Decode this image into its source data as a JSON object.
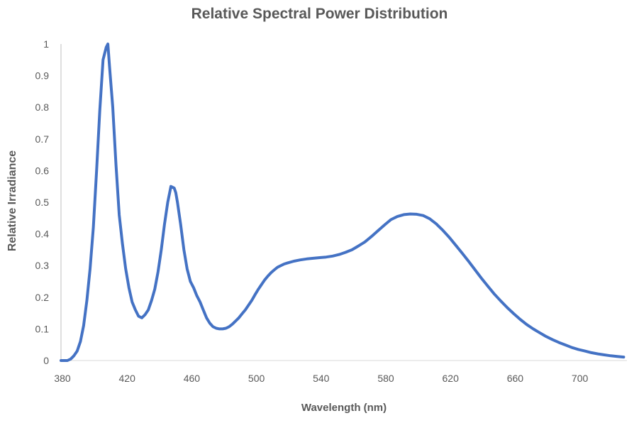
{
  "chart_data": {
    "type": "line",
    "title": "Relative Spectral Power Distribution",
    "xlabel": "Wavelength (nm)",
    "ylabel": "Relative Irradiance",
    "xlim": [
      380,
      730
    ],
    "ylim": [
      0,
      1
    ],
    "xticks": [
      380,
      420,
      460,
      500,
      540,
      580,
      620,
      660,
      700
    ],
    "yticks": [
      0,
      0.1,
      0.2,
      0.3,
      0.4,
      0.5,
      0.6,
      0.7,
      0.8,
      0.9,
      1
    ],
    "ytick_labels": [
      "0",
      "0.1",
      "0.2",
      "0.3",
      "0.4",
      "0.5",
      "0.6",
      "0.7",
      "0.8",
      "0.9",
      "1"
    ],
    "grid": false,
    "color": "#4472C4",
    "series": [
      {
        "name": "Relative Irradiance",
        "x": [
          380,
          384,
          386,
          388,
          390,
          392,
          394,
          396,
          398,
          400,
          402,
          404,
          406,
          408,
          409,
          410,
          412,
          414,
          416,
          418,
          420,
          422,
          424,
          426,
          428,
          430,
          432,
          434,
          436,
          438,
          440,
          442,
          444,
          446,
          448,
          450,
          451,
          452,
          454,
          456,
          458,
          460,
          462,
          464,
          466,
          468,
          470,
          472,
          474,
          476,
          478,
          480,
          482,
          484,
          486,
          488,
          490,
          492,
          494,
          496,
          498,
          500,
          502,
          504,
          506,
          508,
          510,
          512,
          514,
          516,
          518,
          520,
          524,
          528,
          532,
          536,
          540,
          544,
          548,
          552,
          556,
          560,
          564,
          568,
          572,
          576,
          580,
          584,
          588,
          592,
          596,
          600,
          604,
          608,
          612,
          616,
          620,
          624,
          628,
          632,
          636,
          640,
          644,
          648,
          652,
          656,
          660,
          664,
          668,
          672,
          676,
          680,
          684,
          688,
          692,
          696,
          700,
          704,
          708,
          712,
          716,
          720,
          724,
          728
        ],
        "values": [
          0.0,
          0.0,
          0.005,
          0.015,
          0.03,
          0.06,
          0.11,
          0.19,
          0.29,
          0.42,
          0.6,
          0.79,
          0.95,
          0.99,
          1.0,
          0.93,
          0.8,
          0.62,
          0.46,
          0.37,
          0.29,
          0.23,
          0.185,
          0.16,
          0.14,
          0.135,
          0.145,
          0.16,
          0.19,
          0.225,
          0.28,
          0.35,
          0.43,
          0.5,
          0.55,
          0.545,
          0.53,
          0.5,
          0.43,
          0.35,
          0.29,
          0.25,
          0.23,
          0.205,
          0.185,
          0.16,
          0.135,
          0.118,
          0.107,
          0.102,
          0.1,
          0.1,
          0.102,
          0.107,
          0.115,
          0.125,
          0.135,
          0.148,
          0.16,
          0.175,
          0.19,
          0.208,
          0.225,
          0.24,
          0.255,
          0.267,
          0.278,
          0.287,
          0.295,
          0.3,
          0.305,
          0.308,
          0.314,
          0.318,
          0.321,
          0.323,
          0.325,
          0.327,
          0.33,
          0.335,
          0.342,
          0.35,
          0.362,
          0.375,
          0.392,
          0.41,
          0.428,
          0.445,
          0.455,
          0.461,
          0.463,
          0.462,
          0.458,
          0.448,
          0.432,
          0.412,
          0.39,
          0.365,
          0.34,
          0.314,
          0.287,
          0.26,
          0.235,
          0.21,
          0.188,
          0.167,
          0.148,
          0.13,
          0.114,
          0.1,
          0.088,
          0.076,
          0.066,
          0.057,
          0.049,
          0.041,
          0.035,
          0.03,
          0.025,
          0.021,
          0.018,
          0.015,
          0.013,
          0.011
        ]
      }
    ]
  }
}
